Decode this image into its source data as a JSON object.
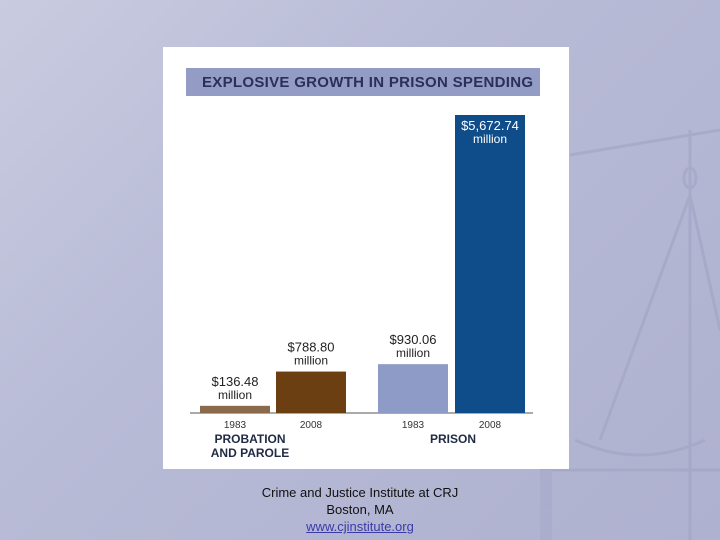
{
  "colors": {
    "background": "#b8bbd6",
    "title_bar": "#939cc4",
    "title_text": "#2b2f5a",
    "probation_1983": "#8a6a4a",
    "probation_2008": "#6b3f12",
    "prison_1983": "#8e9bc6",
    "prison_2008": "#0f4c8a"
  },
  "chart_data": {
    "type": "bar",
    "title": "EXPLOSIVE GROWTH IN PRISON SPENDING",
    "ylim": [
      0,
      5672.74
    ],
    "groups": [
      {
        "name_lines": [
          "PROBATION",
          "AND PAROLE"
        ],
        "bars": [
          {
            "year": "1983",
            "value": 136.48,
            "label_lines": [
              "$136.48",
              "million"
            ],
            "color": "#8a6a4a"
          },
          {
            "year": "2008",
            "value": 788.8,
            "label_lines": [
              "$788.80",
              "million"
            ],
            "color": "#6b3f12"
          }
        ]
      },
      {
        "name_lines": [
          "PRISON"
        ],
        "bars": [
          {
            "year": "1983",
            "value": 930.06,
            "label_lines": [
              "$930.06",
              "million"
            ],
            "color": "#8e9bc6"
          },
          {
            "year": "2008",
            "value": 5672.74,
            "label_lines": [
              "$5,672.74",
              "million"
            ],
            "color": "#0f4c8a"
          }
        ]
      }
    ]
  },
  "credits": {
    "line1": "Crime and Justice Institute at CRJ",
    "line2": "Boston, MA",
    "link": "www.cjinstitute.org"
  }
}
